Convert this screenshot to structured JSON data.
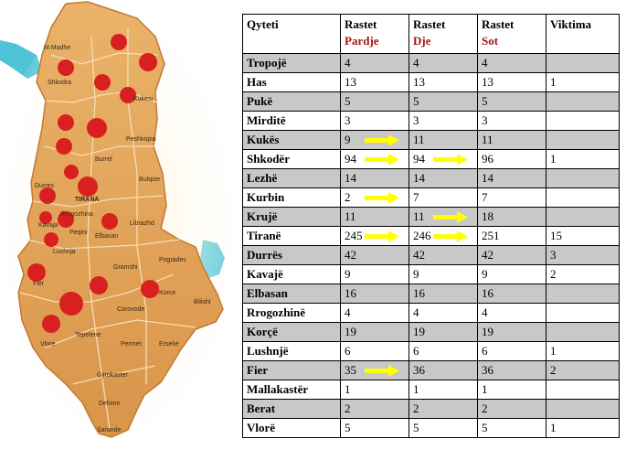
{
  "map": {
    "labels": [
      "M.Madhe",
      "Shkodra",
      "Kukesi",
      "Peshkopia",
      "Burrel",
      "Bulqize",
      "Durres",
      "TIRANA",
      "Rrogozhina",
      "Kavaja",
      "Librazhd",
      "Peqini",
      "Elbasan",
      "Lushnja",
      "Pogradec",
      "Gramshi",
      "Fier",
      "Korce",
      "Bilisht",
      "Corovode",
      "Vlore",
      "Tepelene",
      "Permet",
      "Erseke",
      "Gjirokaster",
      "Delvine",
      "Sarande"
    ]
  },
  "table": {
    "headers": [
      {
        "line1": "Qyteti",
        "line2": ""
      },
      {
        "line1": "Rastet",
        "line2": "Pardje"
      },
      {
        "line1": "Rastet",
        "line2": "Dje"
      },
      {
        "line1": "Rastet",
        "line2": "Sot"
      },
      {
        "line1": "Viktima",
        "line2": ""
      }
    ],
    "rows": [
      {
        "city": "Tropojë",
        "pardje": "4",
        "dje": "4",
        "sot": "4",
        "viktima": ""
      },
      {
        "city": "Has",
        "pardje": "13",
        "dje": "13",
        "sot": "13",
        "viktima": "1"
      },
      {
        "city": "Pukë",
        "pardje": "5",
        "dje": "5",
        "sot": "5",
        "viktima": ""
      },
      {
        "city": "Mirditë",
        "pardje": "3",
        "dje": "3",
        "sot": "3",
        "viktima": ""
      },
      {
        "city": "Kukës",
        "pardje": "9",
        "dje": "11",
        "sot": "11",
        "viktima": ""
      },
      {
        "city": "Shkodër",
        "pardje": "94",
        "dje": "94",
        "sot": "96",
        "viktima": "1"
      },
      {
        "city": "Lezhë",
        "pardje": "14",
        "dje": "14",
        "sot": "14",
        "viktima": ""
      },
      {
        "city": "Kurbin",
        "pardje": "2",
        "dje": "7",
        "sot": "7",
        "viktima": ""
      },
      {
        "city": "Krujë",
        "pardje": "11",
        "dje": "11",
        "sot": "18",
        "viktima": ""
      },
      {
        "city": "Tiranë",
        "pardje": "245",
        "dje": "246",
        "sot": "251",
        "viktima": "15"
      },
      {
        "city": "Durrës",
        "pardje": "42",
        "dje": "42",
        "sot": "42",
        "viktima": "3"
      },
      {
        "city": "Kavajë",
        "pardje": "9",
        "dje": "9",
        "sot": "9",
        "viktima": "2"
      },
      {
        "city": "Elbasan",
        "pardje": "16",
        "dje": "16",
        "sot": "16",
        "viktima": ""
      },
      {
        "city": "Rrogozhinë",
        "pardje": "4",
        "dje": "4",
        "sot": "4",
        "viktima": ""
      },
      {
        "city": "Korçë",
        "pardje": "19",
        "dje": "19",
        "sot": "19",
        "viktima": ""
      },
      {
        "city": "Lushnjë",
        "pardje": "6",
        "dje": "6",
        "sot": "6",
        "viktima": "1"
      },
      {
        "city": "Fier",
        "pardje": "35",
        "dje": "36",
        "sot": "36",
        "viktima": "2"
      },
      {
        "city": "Mallakastër",
        "pardje": "1",
        "dje": "1",
        "sot": "1",
        "viktima": ""
      },
      {
        "city": "Berat",
        "pardje": "2",
        "dje": "2",
        "sot": "2",
        "viktima": ""
      },
      {
        "city": "Vlorë",
        "pardje": "5",
        "dje": "5",
        "sot": "5",
        "viktima": "1"
      }
    ],
    "arrows": [
      {
        "row": 4,
        "col": "pardje"
      },
      {
        "row": 5,
        "col": "pardje"
      },
      {
        "row": 5,
        "col": "dje"
      },
      {
        "row": 7,
        "col": "pardje"
      },
      {
        "row": 8,
        "col": "dje"
      },
      {
        "row": 9,
        "col": "pardje"
      },
      {
        "row": 9,
        "col": "dje"
      },
      {
        "row": 16,
        "col": "pardje"
      }
    ]
  },
  "colors": {
    "shade": "#c8c8c8",
    "subheader": "#a31515",
    "arrow": "#ffff00",
    "map_fill": "#e3a55b",
    "marker": "#d92020",
    "water": "#4fc4d6"
  }
}
